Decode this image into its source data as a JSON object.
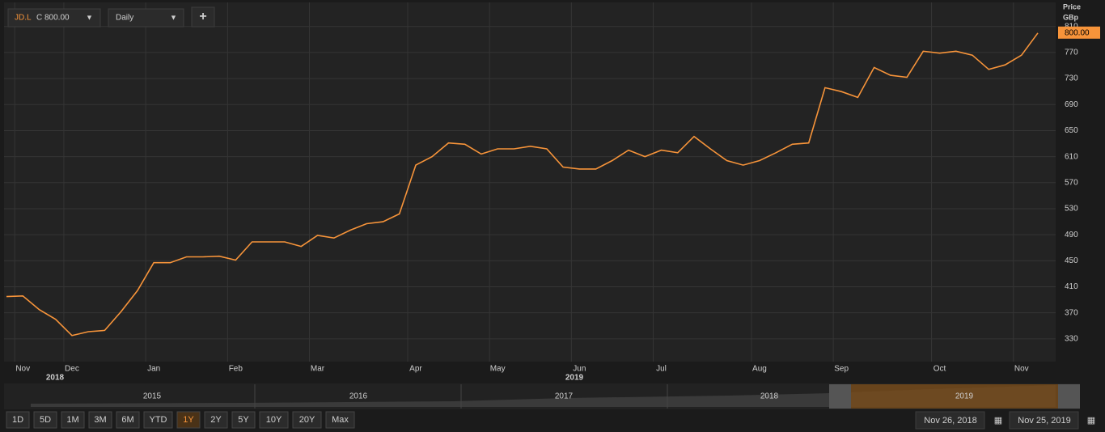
{
  "ui": {
    "symbol": "JD.L",
    "quote": "C 800.00",
    "interval": "Daily",
    "add": "+",
    "price_label": "Price",
    "unit_label": "GBp",
    "year_labels": [
      "2018",
      "2019"
    ],
    "navigator_years": [
      "2015",
      "2016",
      "2017",
      "2018",
      "2019"
    ],
    "ranges": [
      "1D",
      "5D",
      "1M",
      "3M",
      "6M",
      "YTD",
      "1Y",
      "2Y",
      "5Y",
      "10Y",
      "20Y",
      "Max"
    ],
    "start_date": "Nov 26, 2018",
    "end_date": "Nov 25, 2019"
  },
  "chart_data": {
    "type": "line",
    "categories": [
      null,
      "Nov",
      null,
      null,
      "Dec",
      null,
      null,
      null,
      null,
      "Jan",
      null,
      null,
      null,
      null,
      "Feb",
      null,
      null,
      null,
      null,
      "Mar",
      null,
      null,
      null,
      null,
      null,
      "Apr",
      null,
      null,
      null,
      null,
      "May",
      null,
      null,
      null,
      null,
      "Jun",
      null,
      null,
      null,
      null,
      "Jul",
      null,
      null,
      null,
      null,
      null,
      "Aug",
      null,
      null,
      null,
      null,
      "Sep",
      null,
      null,
      null,
      null,
      null,
      "Oct",
      null,
      null,
      null,
      null,
      "Nov",
      null
    ],
    "series": [
      {
        "name": "JD.L",
        "color": "#f7943a",
        "values": [
          395,
          396,
          375,
          360,
          335,
          341,
          343,
          372,
          404,
          447,
          447,
          456,
          456,
          457,
          451,
          479,
          479,
          479,
          472,
          489,
          485,
          497,
          507,
          510,
          522,
          597,
          610,
          631,
          629,
          614,
          622,
          622,
          626,
          622,
          594,
          591,
          591,
          604,
          620,
          610,
          620,
          616,
          641,
          622,
          604,
          597,
          604,
          616,
          629,
          631,
          716,
          710,
          701,
          747,
          735,
          732,
          772,
          769,
          772,
          766,
          744,
          751,
          766,
          800
        ]
      }
    ],
    "last_value_label": "800.00",
    "ylim": [
      295,
      847
    ],
    "yticks": [
      330,
      370,
      410,
      450,
      490,
      530,
      570,
      610,
      650,
      690,
      730,
      770,
      810
    ],
    "grid": true
  }
}
